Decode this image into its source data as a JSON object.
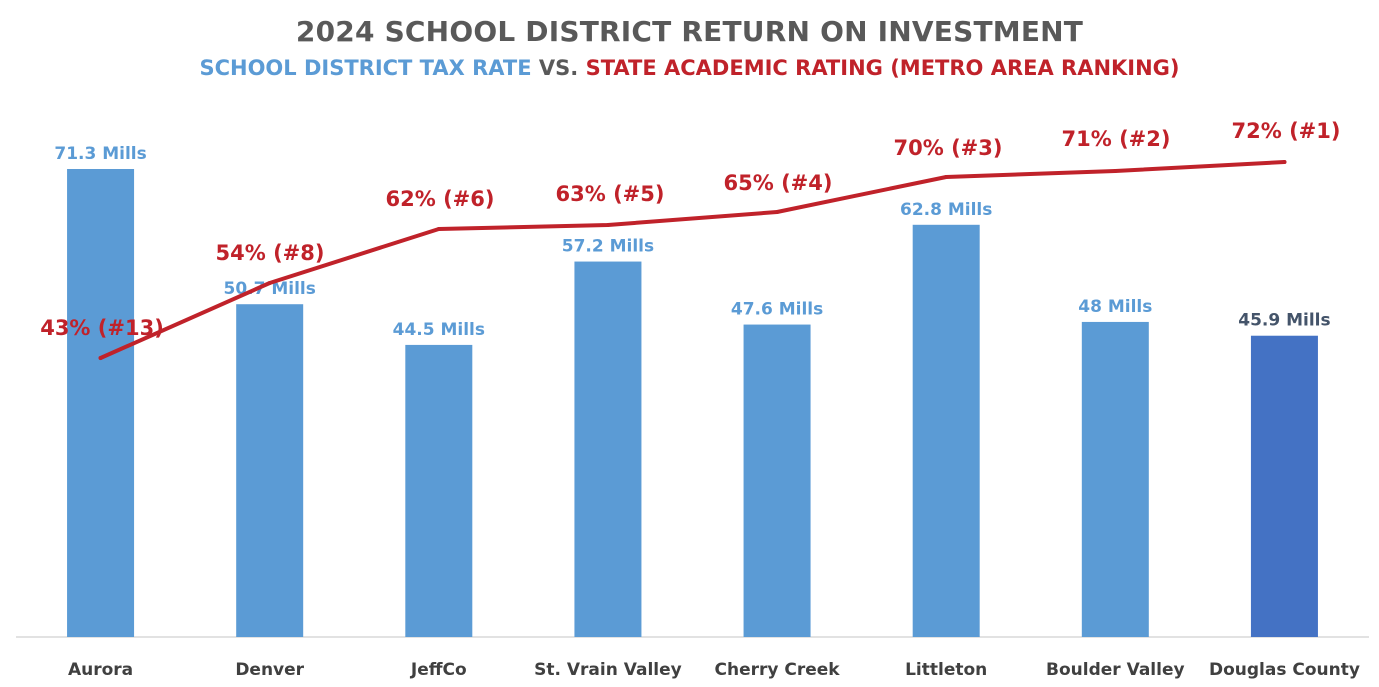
{
  "title": "2024 SCHOOL DISTRICT RETURN ON INVESTMENT",
  "subtitle": {
    "part1": "SCHOOL DISTRICT TAX RATE",
    "part2": " VS. ",
    "part3": "STATE ACADEMIC RATING (METRO AREA RANKING)"
  },
  "colors": {
    "title": "#595959",
    "bar": "#5b9bd5",
    "bar_highlight": "#4472c4",
    "bar_label": "#5b9bd5",
    "bar_label_highlight": "#44546a",
    "line": "#c0222a",
    "line_label": "#c0222a",
    "axis": "#d9d9d9",
    "category": "#404040"
  },
  "chart_data": {
    "type": "bar",
    "categories": [
      "Aurora",
      "Denver",
      "JeffCo",
      "St. Vrain Valley",
      "Cherry Creek",
      "Littleton",
      "Boulder Valley",
      "Douglas County"
    ],
    "series": [
      {
        "type": "bar",
        "values": [
          71.3,
          50.7,
          44.5,
          57.2,
          47.6,
          62.8,
          48,
          45.9
        ],
        "labels": [
          "71.3 Mills",
          "50.7 Mills",
          "44.5 Mills",
          "57.2 Mills",
          "47.6 Mills",
          "62.8 Mills",
          "48 Mills",
          "45.9 Mills"
        ],
        "highlight_index": 7
      },
      {
        "type": "line",
        "values": [
          43,
          54,
          62,
          63,
          65,
          70,
          71,
          72
        ],
        "labels": [
          "43% (#13)",
          "54% (#8)",
          "62% (#6)",
          "63% (#5)",
          "65% (#4)",
          "70% (#3)",
          "71% (#2)",
          "72% (#1)"
        ]
      }
    ],
    "bar_ylim": [
      0,
      71.3
    ],
    "line_ylim": [
      0,
      85
    ],
    "grid": false,
    "legend": "none"
  }
}
